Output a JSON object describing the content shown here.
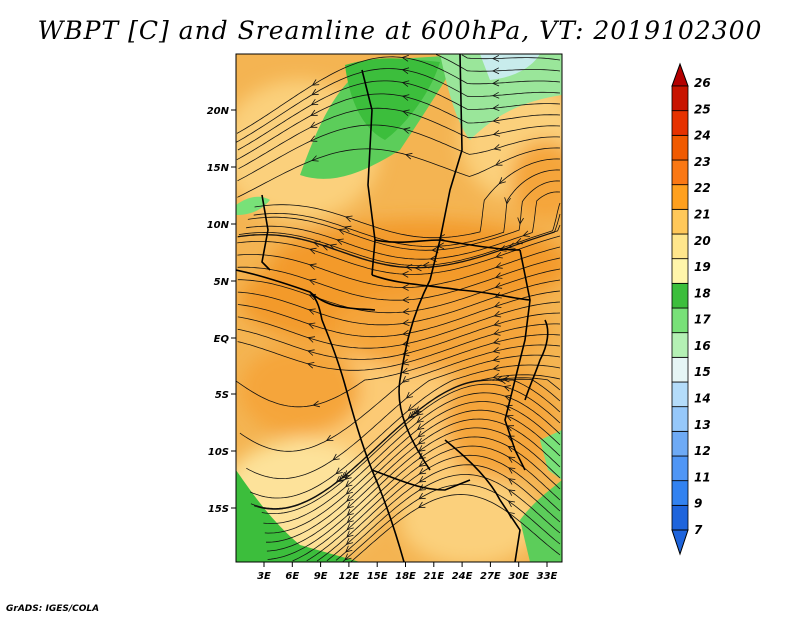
{
  "title": "WBPT [C] and Sreamline at 600hPa, VT: 2019102300",
  "credit": "GrADS: IGES/COLA",
  "map": {
    "latitude_labels": [
      "20N",
      "15N",
      "10N",
      "5N",
      "EQ",
      "5S",
      "10S",
      "15S"
    ],
    "longitude_labels": [
      "3E",
      "6E",
      "9E",
      "12E",
      "15E",
      "18E",
      "21E",
      "24E",
      "27E",
      "30E",
      "33E"
    ]
  },
  "colorbar": {
    "labels": [
      "7",
      "9",
      "11",
      "12",
      "13",
      "14",
      "15",
      "16",
      "17",
      "18",
      "19",
      "20",
      "21",
      "22",
      "23",
      "24",
      "25",
      "26"
    ],
    "colors": [
      "#1e64dc",
      "#3282f0",
      "#5096f5",
      "#6eaaf5",
      "#96c8fa",
      "#b4dcfa",
      "#e6f5f5",
      "#b4f0b4",
      "#78e178",
      "#3cbe3c",
      "#fff5aa",
      "#ffe68c",
      "#ffc85a",
      "#ffa01e",
      "#fa7814",
      "#f05a00",
      "#e63200",
      "#c81400"
    ],
    "top_color": "#b40000",
    "bottom_color": "#1e64dc"
  }
}
